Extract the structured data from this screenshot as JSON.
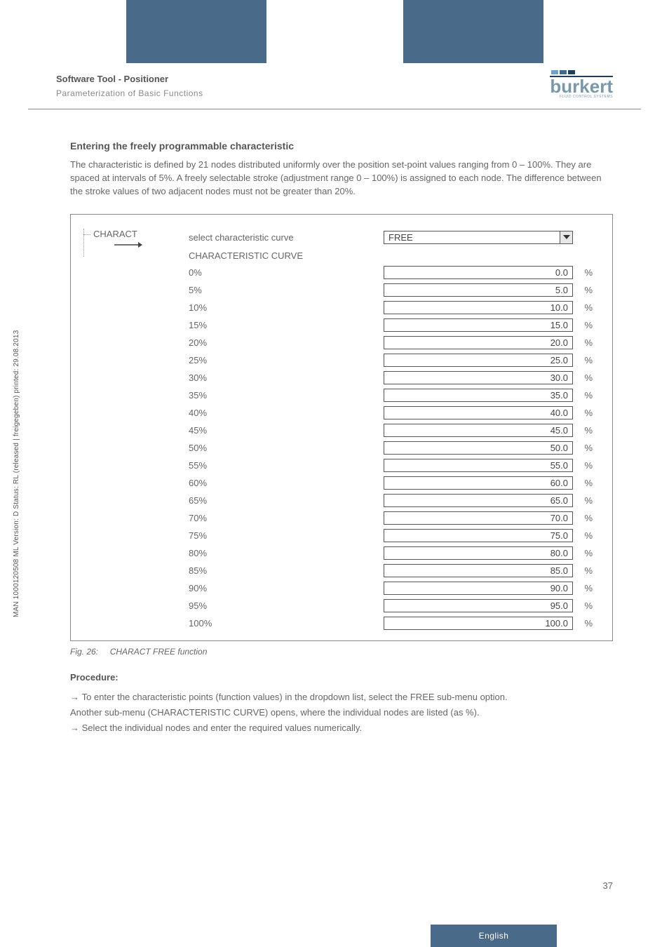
{
  "header": {
    "title": "Software Tool - Positioner",
    "subtitle": "Parameterization of Basic Functions"
  },
  "logo": {
    "text": "burkert",
    "sub": "FLUID CONTROL SYSTEMS",
    "block_colors": [
      "#6ea2c9",
      "#3b6a8f",
      "#1f3f58"
    ],
    "text_color": "#7a98ab"
  },
  "section": {
    "heading": "Entering the freely programmable characteristic",
    "paragraph": "The characteristic is defined by 21 nodes distributed uniformly over the position set-point values ranging from 0 – 100%. They are spaced at intervals of 5%. A freely selectable stroke (adjustment range 0 – 100%) is assigned to each node. The difference between the stroke values of two adjacent nodes must not be greater than 20%."
  },
  "tree": {
    "root": "CHARACT"
  },
  "panel": {
    "select_label": "select characteristic curve",
    "select_value": "FREE",
    "subheading": "CHARACTERISTIC CURVE",
    "unit": "%",
    "rows": [
      {
        "label": "0%",
        "value": "0.0"
      },
      {
        "label": "5%",
        "value": "5.0"
      },
      {
        "label": "10%",
        "value": "10.0"
      },
      {
        "label": "15%",
        "value": "15.0"
      },
      {
        "label": "20%",
        "value": "20.0"
      },
      {
        "label": "25%",
        "value": "25.0"
      },
      {
        "label": "30%",
        "value": "30.0"
      },
      {
        "label": "35%",
        "value": "35.0"
      },
      {
        "label": "40%",
        "value": "40.0"
      },
      {
        "label": "45%",
        "value": "45.0"
      },
      {
        "label": "50%",
        "value": "50.0"
      },
      {
        "label": "55%",
        "value": "55.0"
      },
      {
        "label": "60%",
        "value": "60.0"
      },
      {
        "label": "65%",
        "value": "65.0"
      },
      {
        "label": "70%",
        "value": "70.0"
      },
      {
        "label": "75%",
        "value": "75.0"
      },
      {
        "label": "80%",
        "value": "80.0"
      },
      {
        "label": "85%",
        "value": "85.0"
      },
      {
        "label": "90%",
        "value": "90.0"
      },
      {
        "label": "95%",
        "value": "95.0"
      },
      {
        "label": "100%",
        "value": "100.0"
      }
    ]
  },
  "figure": {
    "num": "Fig. 26:",
    "caption": "CHARACT FREE function"
  },
  "procedure": {
    "heading": "Procedure:",
    "line1": "To enter the characteristic points (function values) in the dropdown list, select the FREE sub-menu option.",
    "line2": "Another sub-menu (CHARACTERISTIC CURVE) opens, where the individual nodes are listed (as %).",
    "line3": "Select the individual nodes and enter the required values numerically."
  },
  "side_text": "MAN 1000120508 ML Version: D Status: RL (released | freigegeben) printed: 29.08.2013",
  "page_number": "37",
  "language_tab": "English"
}
